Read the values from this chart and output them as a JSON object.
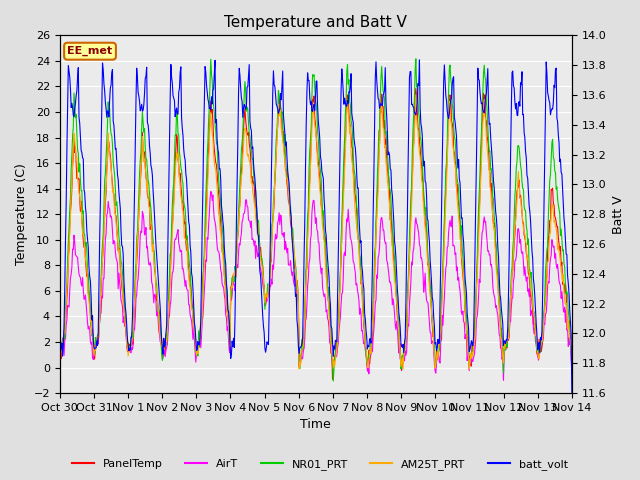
{
  "title": "Temperature and Batt V",
  "xlabel": "Time",
  "ylabel_left": "Temperature (C)",
  "ylabel_right": "Batt V",
  "annotation": "EE_met",
  "ylim_left": [
    -2,
    26
  ],
  "ylim_right": [
    11.6,
    14.0
  ],
  "yticks_left": [
    -2,
    0,
    2,
    4,
    6,
    8,
    10,
    12,
    14,
    16,
    18,
    20,
    22,
    24,
    26
  ],
  "yticks_right": [
    11.6,
    11.8,
    12.0,
    12.2,
    12.4,
    12.6,
    12.8,
    13.0,
    13.2,
    13.4,
    13.6,
    13.8,
    14.0
  ],
  "xtick_labels": [
    "Oct 30",
    "Oct 31",
    "Nov 1",
    "Nov 2",
    "Nov 3",
    "Nov 4",
    "Nov 5",
    "Nov 6",
    "Nov 7",
    "Nov 8",
    "Nov 9",
    "Nov 10",
    "Nov 11",
    "Nov 12",
    "Nov 13",
    "Nov 14"
  ],
  "legend_entries": [
    "PanelTemp",
    "AirT",
    "NR01_PRT",
    "AM25T_PRT",
    "batt_volt"
  ],
  "legend_colors": [
    "#ff0000",
    "#ff00ff",
    "#00cc00",
    "#ffaa00",
    "#0000ff"
  ],
  "line_colors": {
    "PanelTemp": "#ff0000",
    "AirT": "#ff00ff",
    "NR01_PRT": "#00cc00",
    "AM25T_PRT": "#ffaa00",
    "batt_volt": "#0000ff"
  },
  "bg_color": "#e0e0e0",
  "plot_bg_color": "#ebebeb",
  "grid_color": "#ffffff",
  "title_fontsize": 11,
  "axis_fontsize": 9,
  "tick_fontsize": 8,
  "annotation_color": "#8b0000",
  "annotation_bg": "#ffff99",
  "annotation_edge": "#cc6600",
  "figsize": [
    6.4,
    4.8
  ],
  "dpi": 100
}
